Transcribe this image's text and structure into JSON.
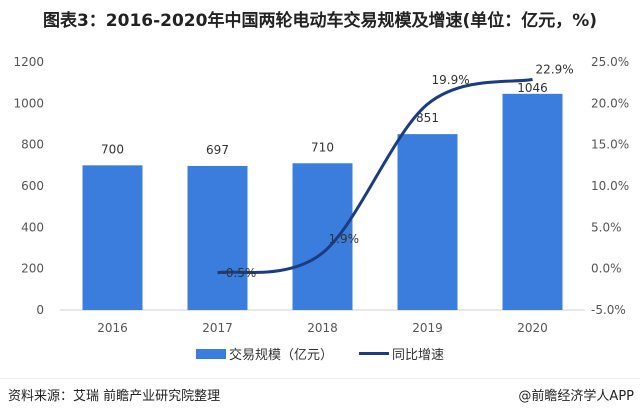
{
  "title": "图表3：2016-2020年中国两轮电动车交易规模及增速(单位：亿元，%)",
  "chart_data": {
    "type": "bar+line",
    "title": "图表3：2016-2020年中国两轮电动车交易规模及增速(单位：亿元，%)",
    "categories": [
      "2016",
      "2017",
      "2018",
      "2019",
      "2020"
    ],
    "series": [
      {
        "name": "交易规模（亿元）",
        "type": "bar",
        "axis": "left",
        "values": [
          700,
          697,
          710,
          851,
          1046
        ],
        "labels": [
          "700",
          "697",
          "710",
          "851",
          "1046"
        ],
        "color": "#3B7DDD"
      },
      {
        "name": "同比增速",
        "type": "line",
        "axis": "right",
        "smooth": true,
        "values": [
          null,
          -0.5,
          1.9,
          19.9,
          22.9
        ],
        "labels": [
          "",
          "-0.5%",
          "1.9%",
          "19.9%",
          "22.9%"
        ],
        "color": "#1B3C80"
      }
    ],
    "left_axis": {
      "ylim": [
        0,
        1200
      ],
      "ticks": [
        "0",
        "200",
        "400",
        "600",
        "800",
        "1000",
        "1200"
      ]
    },
    "right_axis": {
      "ylim": [
        -5,
        25
      ],
      "ticks": [
        "-5.0%",
        "0.0%",
        "5.0%",
        "10.0%",
        "15.0%",
        "20.0%",
        "25.0%"
      ]
    },
    "grid": false,
    "legend": "bottom"
  },
  "legend": {
    "bar": "交易规模（亿元）",
    "line": "同比增速"
  },
  "footer": {
    "source": "资料来源：艾瑞 前瞻产业研究院整理",
    "credit": "@前瞻经济学人APP"
  }
}
